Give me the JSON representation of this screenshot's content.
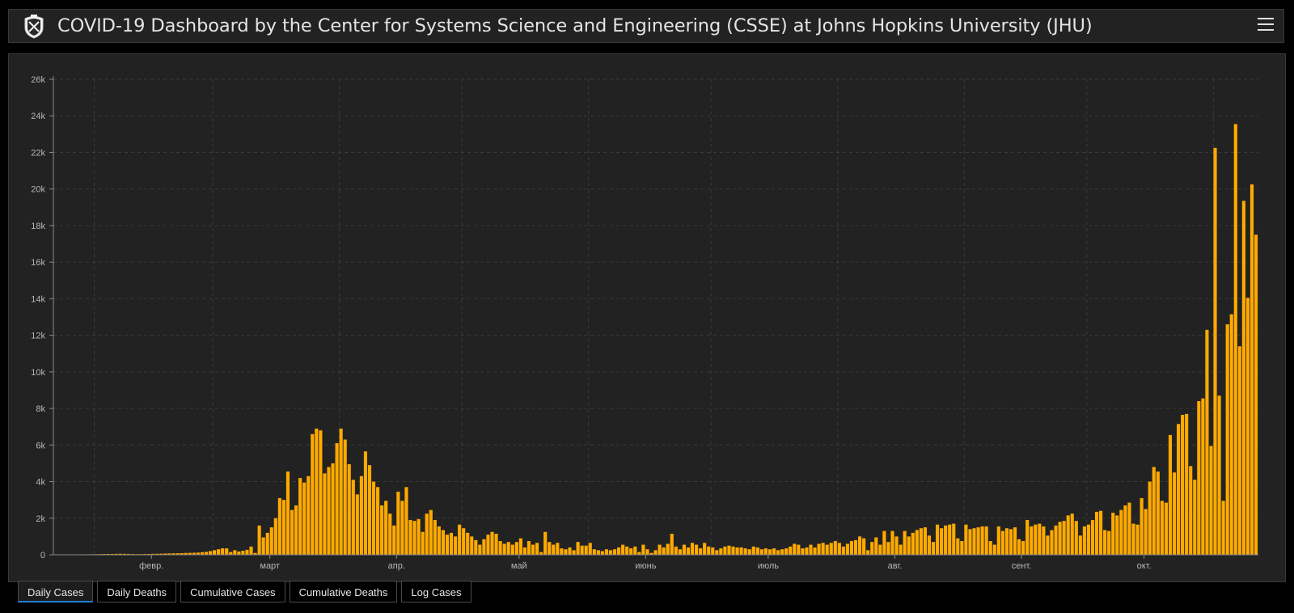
{
  "header": {
    "title": "COVID-19 Dashboard by the Center for Systems Science and Engineering (CSSE) at Johns Hopkins University (JHU)",
    "logo_icon": "jhu-shield-icon",
    "menu_icon": "hamburger-menu-icon"
  },
  "tabs": [
    {
      "label": "Daily Cases",
      "active": true
    },
    {
      "label": "Daily Deaths",
      "active": false
    },
    {
      "label": "Cumulative Cases",
      "active": false
    },
    {
      "label": "Cumulative Deaths",
      "active": false
    },
    {
      "label": "Log Cases",
      "active": false
    }
  ],
  "colors": {
    "bar": "#ffaa00",
    "background": "#222222",
    "active_tab_underline": "#1d7fd9"
  },
  "chart_data": {
    "type": "bar",
    "title": "",
    "xlabel": "",
    "ylabel": "",
    "x_start": "2020-01-22",
    "ylim": [
      0,
      26000
    ],
    "yticks": [
      0,
      2000,
      4000,
      6000,
      8000,
      10000,
      12000,
      14000,
      16000,
      18000,
      20000,
      22000,
      24000,
      26000
    ],
    "yticklabels": [
      "0",
      "2k",
      "4k",
      "6k",
      "8k",
      "10k",
      "12k",
      "14k",
      "16k",
      "18k",
      "20k",
      "22k",
      "24k",
      "26k"
    ],
    "month_labels": [
      "февр.",
      "март",
      "апр.",
      "май",
      "июнь",
      "июль",
      "авг.",
      "сент.",
      "окт."
    ],
    "grid": true,
    "legend": "none",
    "values": [
      10,
      5,
      8,
      12,
      6,
      10,
      15,
      20,
      25,
      30,
      30,
      35,
      40,
      45,
      45,
      50,
      55,
      50,
      45,
      40,
      35,
      35,
      40,
      45,
      50,
      55,
      60,
      70,
      75,
      80,
      85,
      90,
      100,
      105,
      110,
      120,
      140,
      160,
      200,
      250,
      300,
      350,
      350,
      150,
      250,
      180,
      220,
      270,
      450,
      100,
      1600,
      950,
      1200,
      1500,
      2000,
      3100,
      3000,
      4550,
      2450,
      2700,
      4200,
      3950,
      4300,
      6600,
      6900,
      6800,
      4450,
      4800,
      5000,
      6100,
      6900,
      6300,
      4950,
      4100,
      3300,
      4300,
      5650,
      4900,
      4000,
      3700,
      2700,
      2950,
      2250,
      1600,
      3450,
      2950,
      3700,
      1900,
      1850,
      1950,
      1250,
      2250,
      2450,
      1900,
      1550,
      1350,
      1100,
      1200,
      1000,
      1650,
      1450,
      1200,
      1000,
      800,
      550,
      850,
      1100,
      1250,
      1150,
      750,
      600,
      700,
      550,
      700,
      900,
      400,
      750,
      550,
      650,
      150,
      1250,
      700,
      550,
      650,
      350,
      300,
      400,
      250,
      700,
      500,
      500,
      650,
      300,
      250,
      200,
      300,
      250,
      300,
      400,
      550,
      450,
      350,
      450,
      150,
      550,
      300,
      100,
      250,
      550,
      400,
      600,
      1150,
      450,
      300,
      550,
      400,
      650,
      550,
      350,
      650,
      450,
      400,
      250,
      350,
      450,
      500,
      450,
      400,
      400,
      350,
      300,
      450,
      400,
      300,
      350,
      300,
      350,
      250,
      300,
      350,
      450,
      600,
      550,
      350,
      400,
      550,
      400,
      600,
      650,
      550,
      650,
      750,
      650,
      450,
      600,
      750,
      800,
      1000,
      900,
      250,
      700,
      950,
      550,
      1300,
      700,
      1300,
      1000,
      550,
      1300,
      1000,
      1200,
      1350,
      1450,
      1500,
      1050,
      700,
      1650,
      1450,
      1600,
      1650,
      1700,
      900,
      750,
      1650,
      1400,
      1450,
      1500,
      1550,
      1550,
      750,
      550,
      1550,
      1300,
      1450,
      1400,
      1500,
      850,
      750,
      1900,
      1550,
      1650,
      1700,
      1550,
      1050,
      1350,
      1600,
      1800,
      1850,
      2150,
      2250,
      1850,
      1050,
      1550,
      1650,
      1900,
      2350,
      2400,
      1350,
      1300,
      2300,
      2150,
      2450,
      2700,
      2850,
      1700,
      1650,
      3100,
      2500,
      4000,
      4800,
      4550,
      2950,
      2850,
      6550,
      4500,
      7150,
      7650,
      7700,
      4850,
      4100,
      8400,
      8550,
      12300,
      5950,
      22250,
      8700,
      2950,
      12600,
      13150,
      23550,
      11400,
      19350,
      14050,
      20250,
      17500
    ]
  }
}
